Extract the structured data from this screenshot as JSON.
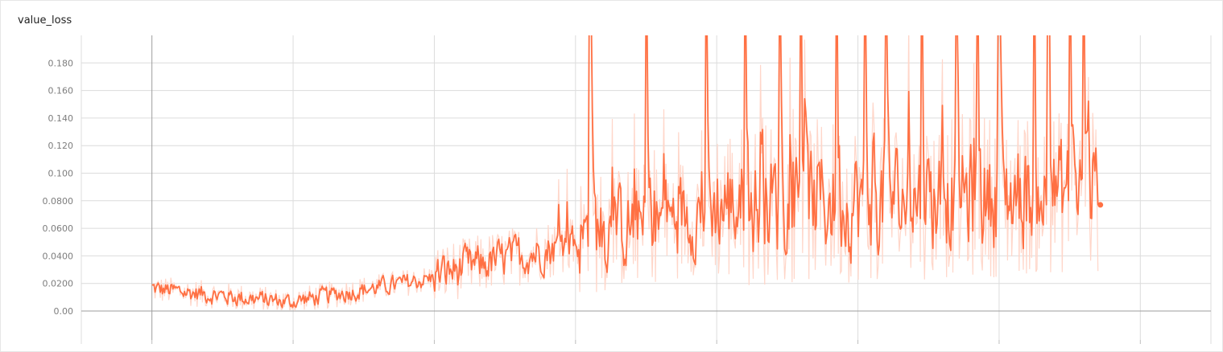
{
  "chart_data": {
    "type": "line",
    "title": "value_loss",
    "xlabel": "",
    "ylabel": "",
    "ylim": [
      -0.021,
      0.2
    ],
    "xlim": [
      -0.5,
      7.5
    ],
    "y_ticks": [
      "0.00",
      "0.0200",
      "0.0400",
      "0.0600",
      "0.0800",
      "0.100",
      "0.120",
      "0.140",
      "0.160",
      "0.180"
    ],
    "y_tick_values": [
      0,
      0.02,
      0.04,
      0.06,
      0.08,
      0.1,
      0.12,
      0.14,
      0.16,
      0.18
    ],
    "x_tick_values": [
      0,
      1,
      2,
      3,
      4,
      5,
      6,
      7
    ],
    "grid": true,
    "series_color": "#ff7043",
    "raw_color": "#ffd6c9",
    "x_start": 0.0,
    "x_end": 6.7,
    "last_value": 0.077,
    "phases": [
      {
        "x": [
          0.0,
          1.0
        ],
        "mean_start": 0.014,
        "mean_end": 0.004,
        "noise": 0.01
      },
      {
        "x": [
          1.0,
          2.0
        ],
        "mean_start": 0.005,
        "mean_end": 0.022,
        "noise": 0.01
      },
      {
        "x": [
          2.0,
          3.0
        ],
        "mean_start": 0.022,
        "mean_end": 0.045,
        "noise": 0.022
      },
      {
        "x": [
          3.0,
          4.0
        ],
        "mean_start": 0.045,
        "mean_end": 0.065,
        "noise": 0.045
      },
      {
        "x": [
          4.0,
          6.7
        ],
        "mean_start": 0.065,
        "mean_end": 0.075,
        "noise": 0.06
      }
    ],
    "peak_x": [
      3.1,
      3.11,
      3.5,
      3.93,
      4.2,
      4.45,
      4.6,
      4.85,
      5.05,
      5.2,
      5.45,
      5.7,
      5.85,
      6.0,
      6.25,
      6.35,
      6.5,
      6.6
    ]
  }
}
